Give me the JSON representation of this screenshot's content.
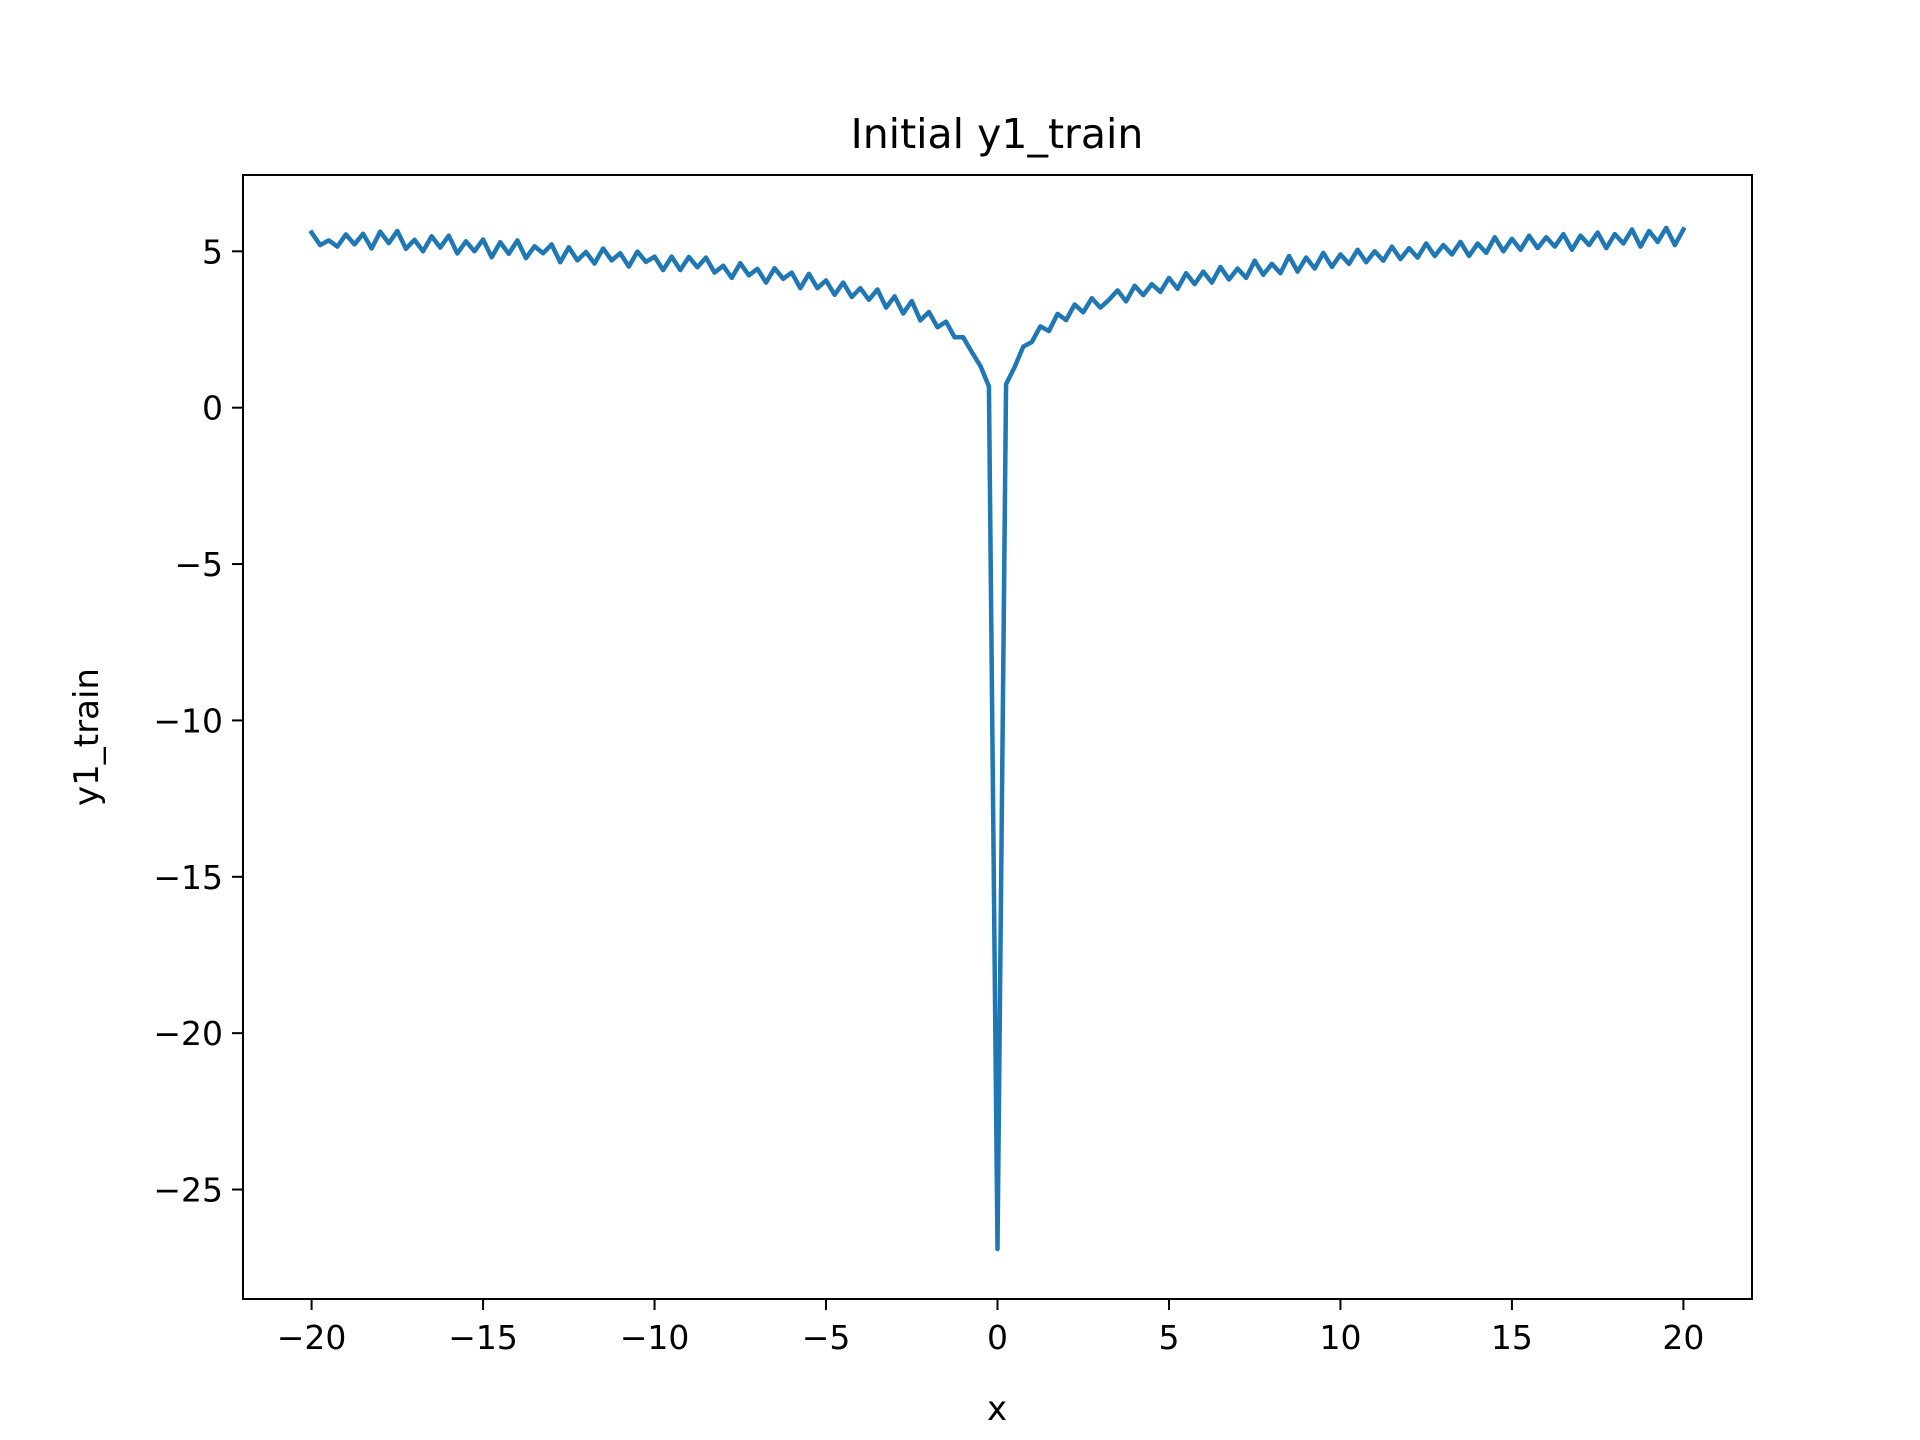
{
  "chart_data": {
    "type": "line",
    "title": "Initial y1_train",
    "xlabel": "x",
    "ylabel": "y1_train",
    "color": "#1f77b4",
    "x": [
      -20,
      -19.75,
      -19.5,
      -19.25,
      -19,
      -18.75,
      -18.5,
      -18.25,
      -18,
      -17.75,
      -17.5,
      -17.25,
      -17,
      -16.75,
      -16.5,
      -16.25,
      -16,
      -15.75,
      -15.5,
      -15.25,
      -15,
      -14.75,
      -14.5,
      -14.25,
      -14,
      -13.75,
      -13.5,
      -13.25,
      -13,
      -12.75,
      -12.5,
      -12.25,
      -12,
      -11.75,
      -11.5,
      -11.25,
      -11,
      -10.75,
      -10.5,
      -10.25,
      -10,
      -9.75,
      -9.5,
      -9.25,
      -9,
      -8.75,
      -8.5,
      -8.25,
      -8,
      -7.75,
      -7.5,
      -7.25,
      -7,
      -6.75,
      -6.5,
      -6.25,
      -6,
      -5.75,
      -5.5,
      -5.25,
      -5,
      -4.75,
      -4.5,
      -4.25,
      -4,
      -3.75,
      -3.5,
      -3.25,
      -3,
      -2.75,
      -2.5,
      -2.25,
      -2,
      -1.75,
      -1.5,
      -1.25,
      -1,
      -0.75,
      -0.5,
      -0.25,
      0,
      0.25,
      0.5,
      0.75,
      1,
      1.25,
      1.5,
      1.75,
      2,
      2.25,
      2.5,
      2.75,
      3,
      3.25,
      3.5,
      3.75,
      4,
      4.25,
      4.5,
      4.75,
      5,
      5.25,
      5.5,
      5.75,
      6,
      6.25,
      6.5,
      6.75,
      7,
      7.25,
      7.5,
      7.75,
      8,
      8.25,
      8.5,
      8.75,
      9,
      9.25,
      9.5,
      9.75,
      10,
      10.25,
      10.5,
      10.75,
      11,
      11.25,
      11.5,
      11.75,
      12,
      12.25,
      12.5,
      12.75,
      13,
      13.25,
      13.5,
      13.75,
      14,
      14.25,
      14.5,
      14.75,
      15,
      15.25,
      15.5,
      15.75,
      16,
      16.25,
      16.5,
      16.75,
      17,
      17.25,
      17.5,
      17.75,
      18,
      18.25,
      18.5,
      18.75,
      19,
      19.25,
      19.5,
      19.75,
      20
    ],
    "values": [
      5.6,
      5.2,
      5.35,
      5.15,
      5.54,
      5.22,
      5.56,
      5.09,
      5.63,
      5.26,
      5.65,
      5.08,
      5.37,
      5.0,
      5.48,
      5.12,
      5.5,
      4.93,
      5.32,
      5.0,
      5.38,
      4.81,
      5.29,
      4.92,
      5.35,
      4.78,
      5.16,
      4.94,
      5.22,
      4.65,
      5.13,
      4.71,
      4.98,
      4.61,
      5.09,
      4.71,
      4.94,
      4.51,
      4.99,
      4.66,
      4.83,
      4.4,
      4.83,
      4.4,
      4.82,
      4.49,
      4.8,
      4.32,
      4.54,
      4.15,
      4.62,
      4.23,
      4.44,
      4.0,
      4.46,
      4.12,
      4.32,
      3.82,
      4.28,
      3.82,
      4.07,
      3.61,
      4.0,
      3.54,
      3.82,
      3.45,
      3.78,
      3.2,
      3.56,
      3.01,
      3.41,
      2.79,
      3.06,
      2.57,
      2.75,
      2.25,
      2.25,
      1.78,
      1.34,
      0.68,
      -26.9,
      0.75,
      1.3,
      1.95,
      2.1,
      2.6,
      2.45,
      3.0,
      2.8,
      3.3,
      3.05,
      3.5,
      3.2,
      3.45,
      3.75,
      3.4,
      3.9,
      3.6,
      3.95,
      3.7,
      4.15,
      3.8,
      4.3,
      3.95,
      4.35,
      4.0,
      4.5,
      4.1,
      4.45,
      4.15,
      4.7,
      4.25,
      4.6,
      4.3,
      4.85,
      4.35,
      4.8,
      4.45,
      4.95,
      4.5,
      4.9,
      4.6,
      5.05,
      4.65,
      5.0,
      4.7,
      5.15,
      4.75,
      5.1,
      4.8,
      5.25,
      4.85,
      5.2,
      4.9,
      5.3,
      4.85,
      5.25,
      4.95,
      5.45,
      5.0,
      5.4,
      5.05,
      5.5,
      5.1,
      5.45,
      5.15,
      5.55,
      5.05,
      5.5,
      5.2,
      5.6,
      5.1,
      5.55,
      5.25,
      5.7,
      5.15,
      5.65,
      5.3,
      5.75,
      5.2,
      5.7
    ],
    "xlim": [
      -22,
      22
    ],
    "ylim": [
      -28.5,
      7.44
    ],
    "xticks": [
      {
        "value": -20,
        "label": "−20"
      },
      {
        "value": -15,
        "label": "−15"
      },
      {
        "value": -10,
        "label": "−10"
      },
      {
        "value": -5,
        "label": "−5"
      },
      0,
      5,
      10,
      15,
      20
    ],
    "yticks": [
      {
        "value": -25,
        "label": "−25"
      },
      {
        "value": -20,
        "label": "−20"
      },
      {
        "value": -15,
        "label": "−15"
      },
      {
        "value": -10,
        "label": "−10"
      },
      {
        "value": -5,
        "label": "−5"
      },
      0,
      5
    ]
  }
}
